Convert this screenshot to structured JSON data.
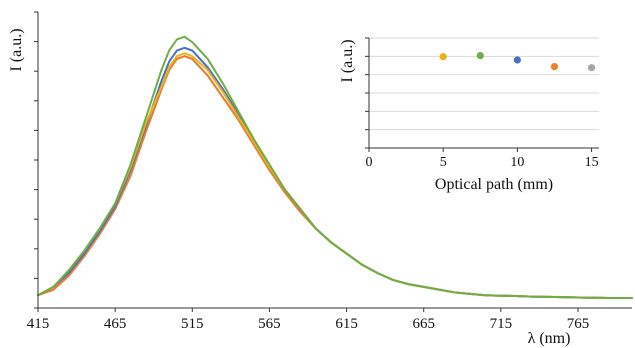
{
  "chart_data": [
    {
      "type": "line",
      "title": "",
      "xlabel": "λ (nm)",
      "ylabel": "I (a.u.)",
      "xlim": [
        415,
        800
      ],
      "ylim": [
        0,
        1
      ],
      "x_ticks": [
        415,
        465,
        515,
        565,
        615,
        665,
        715,
        765
      ],
      "y_tick_labels_shown": false,
      "grid": false,
      "legend": "none",
      "series": [
        {
          "color": "#ECB318",
          "x": [
            415,
            425,
            435,
            445,
            455,
            465,
            475,
            485,
            495,
            500,
            505,
            510,
            515,
            525,
            535,
            545,
            555,
            565,
            575,
            585,
            595,
            605,
            615,
            625,
            635,
            645,
            655,
            665,
            675,
            685,
            695,
            705,
            715,
            725,
            735,
            745,
            755,
            765,
            775,
            785,
            795,
            800
          ],
          "y": [
            0.01,
            0.04,
            0.1,
            0.17,
            0.25,
            0.34,
            0.47,
            0.63,
            0.76,
            0.83,
            0.87,
            0.88,
            0.87,
            0.82,
            0.74,
            0.65,
            0.56,
            0.47,
            0.39,
            0.32,
            0.25,
            0.2,
            0.16,
            0.12,
            0.09,
            0.065,
            0.05,
            0.04,
            0.03,
            0.02,
            0.015,
            0.01,
            0.008,
            0.007,
            0.005,
            0.004,
            0.003,
            0.002,
            0.001,
            0.0,
            0.0,
            0.0
          ]
        },
        {
          "color": "#70AD47",
          "x": [
            415,
            425,
            435,
            445,
            455,
            465,
            475,
            485,
            495,
            500,
            505,
            510,
            515,
            525,
            535,
            545,
            555,
            565,
            575,
            585,
            595,
            605,
            615,
            625,
            635,
            645,
            655,
            665,
            675,
            685,
            695,
            705,
            715,
            725,
            735,
            745,
            755,
            765,
            775,
            785,
            795,
            800
          ],
          "y": [
            0.01,
            0.04,
            0.1,
            0.17,
            0.25,
            0.34,
            0.48,
            0.65,
            0.82,
            0.89,
            0.93,
            0.94,
            0.92,
            0.86,
            0.77,
            0.67,
            0.57,
            0.48,
            0.39,
            0.32,
            0.25,
            0.2,
            0.16,
            0.12,
            0.09,
            0.065,
            0.05,
            0.04,
            0.03,
            0.02,
            0.015,
            0.01,
            0.008,
            0.007,
            0.005,
            0.004,
            0.003,
            0.002,
            0.001,
            0.0,
            0.0,
            0.0
          ]
        },
        {
          "color": "#4472C4",
          "x": [
            415,
            425,
            435,
            445,
            455,
            465,
            475,
            485,
            495,
            500,
            505,
            510,
            515,
            525,
            535,
            545,
            555,
            565,
            575,
            585,
            595,
            605,
            615,
            625,
            635,
            645,
            655,
            665,
            675,
            685,
            695,
            705,
            715,
            725,
            735,
            745,
            755,
            765,
            775,
            785,
            795,
            800
          ],
          "y": [
            0.01,
            0.04,
            0.09,
            0.16,
            0.24,
            0.33,
            0.46,
            0.62,
            0.78,
            0.85,
            0.89,
            0.9,
            0.89,
            0.83,
            0.75,
            0.66,
            0.56,
            0.47,
            0.39,
            0.32,
            0.25,
            0.2,
            0.16,
            0.12,
            0.09,
            0.065,
            0.05,
            0.04,
            0.03,
            0.02,
            0.015,
            0.01,
            0.008,
            0.007,
            0.005,
            0.004,
            0.003,
            0.002,
            0.001,
            0.0,
            0.0,
            0.0
          ]
        },
        {
          "color": "#ED7D31",
          "x": [
            415,
            425,
            435,
            445,
            455,
            465,
            475,
            485,
            495,
            500,
            505,
            510,
            515,
            525,
            535,
            545,
            555,
            565,
            575,
            585,
            595,
            605,
            615,
            625,
            635,
            645,
            655,
            665,
            675,
            685,
            695,
            705,
            715,
            725,
            735,
            745,
            755,
            765,
            775,
            785,
            795,
            800
          ],
          "y": [
            0.01,
            0.03,
            0.08,
            0.15,
            0.23,
            0.32,
            0.44,
            0.6,
            0.75,
            0.82,
            0.86,
            0.87,
            0.86,
            0.8,
            0.72,
            0.64,
            0.55,
            0.46,
            0.38,
            0.31,
            0.25,
            0.2,
            0.16,
            0.12,
            0.09,
            0.065,
            0.05,
            0.04,
            0.03,
            0.02,
            0.015,
            0.01,
            0.008,
            0.007,
            0.005,
            0.004,
            0.003,
            0.002,
            0.001,
            0.0,
            0.0,
            0.0
          ]
        },
        {
          "color": "#A5A5A5",
          "x": [
            415,
            425,
            435,
            445,
            455,
            465,
            475,
            485,
            495,
            500,
            505,
            510,
            515,
            525,
            535,
            545,
            555,
            565,
            575,
            585,
            595,
            605,
            615,
            625,
            635,
            645,
            655,
            665,
            675,
            685,
            695,
            705,
            715,
            725,
            735,
            745,
            755,
            765,
            775,
            785,
            795,
            800
          ],
          "y": [
            0.01,
            0.03,
            0.08,
            0.15,
            0.23,
            0.32,
            0.44,
            0.6,
            0.75,
            0.82,
            0.86,
            0.87,
            0.86,
            0.8,
            0.72,
            0.64,
            0.55,
            0.46,
            0.38,
            0.31,
            0.25,
            0.2,
            0.16,
            0.12,
            0.09,
            0.065,
            0.05,
            0.04,
            0.03,
            0.02,
            0.015,
            0.01,
            0.008,
            0.007,
            0.005,
            0.004,
            0.003,
            0.002,
            0.001,
            0.0,
            0.0,
            0.0
          ]
        }
      ]
    },
    {
      "type": "scatter",
      "title": "",
      "xlabel": "Optical path (mm)",
      "ylabel": "I (a.u.)",
      "xlim": [
        0,
        15.5
      ],
      "ylim": [
        0,
        1
      ],
      "x_ticks": [
        0,
        5,
        10,
        15
      ],
      "y_tick_labels_shown": false,
      "grid": true,
      "legend": "none",
      "position": "top-right",
      "points": [
        {
          "x": 5,
          "y": 0.83,
          "color": "#ECB318"
        },
        {
          "x": 7.5,
          "y": 0.84,
          "color": "#70AD47"
        },
        {
          "x": 10,
          "y": 0.8,
          "color": "#4472C4"
        },
        {
          "x": 12.5,
          "y": 0.74,
          "color": "#ED7D31"
        },
        {
          "x": 15,
          "y": 0.73,
          "color": "#A5A5A5"
        }
      ]
    }
  ]
}
